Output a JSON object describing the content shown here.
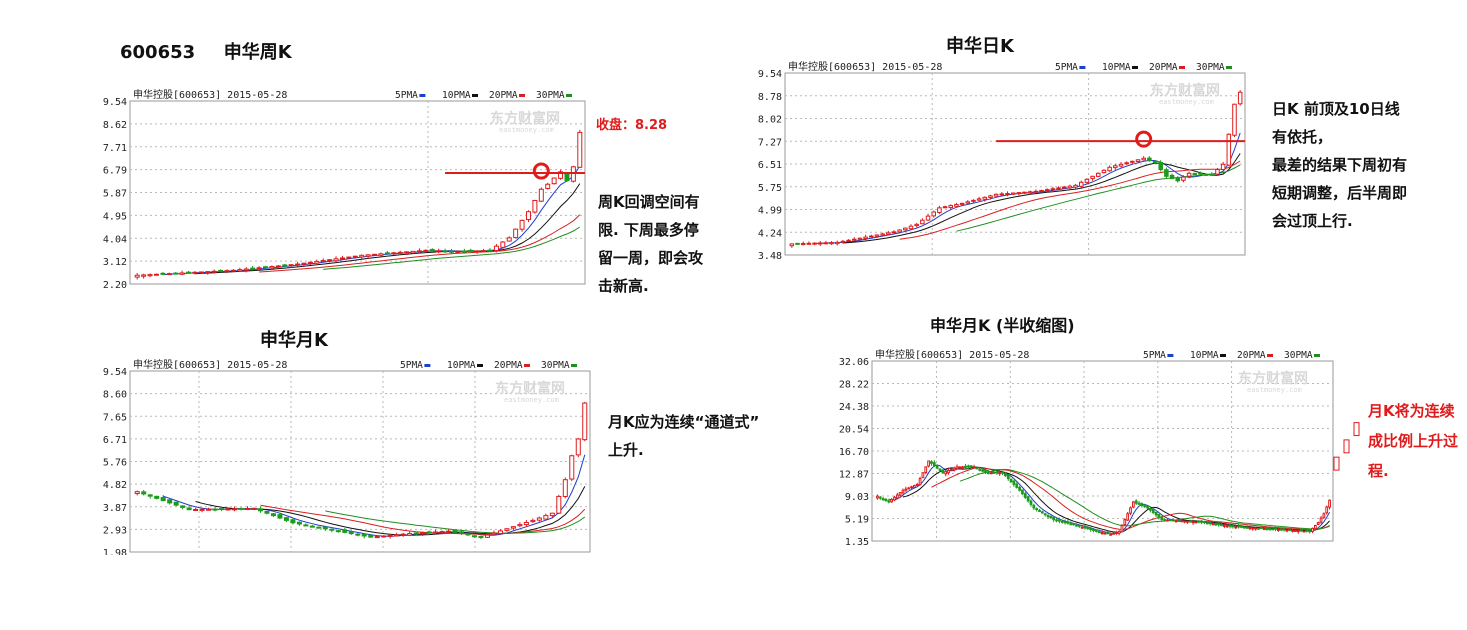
{
  "titles": {
    "weekly_head_code": "600653",
    "weekly_head_name": "申华周K",
    "daily_head": "申华日K",
    "monthly_head": "申华月K",
    "monthly_half_head": "申华月K (半收缩图)"
  },
  "notes": {
    "weekly_close": "收盘：8.28",
    "weekly_lines": [
      "周K回调空间有",
      "限. 下周最多停",
      "留一周，即会攻",
      "击新高."
    ],
    "daily_lines": [
      "日K 前顶及10日线",
      "有依托，",
      "最差的结果下周初有",
      "短期调整，后半周即",
      "会过顶上行."
    ],
    "monthly_lines": [
      "月K应为连续“通道式”",
      "上升."
    ],
    "monthly_half_lines": [
      "月K将为连续",
      "成比例上升过",
      "程."
    ]
  },
  "colors": {
    "up": "#e01b1b",
    "down": "#1a9c1a",
    "ma5": "#1f3fd0",
    "ma10": "#111111",
    "ma20": "#d82020",
    "ma30": "#1f8f1f",
    "grid": "#b8b8b8",
    "annotation": "#e01b1b"
  },
  "chart_data": [
    {
      "id": "weekly",
      "type": "candlestick",
      "header": "申华控股[600653] 2015-05-28",
      "legend": [
        "5PMA",
        "10PMA",
        "20PMA",
        "30PMA"
      ],
      "watermark": "东方财富网",
      "watermark_sub": "eastmoney.com",
      "y_ticks": [
        "9.54",
        "8.62",
        "7.71",
        "6.79",
        "5.87",
        "4.95",
        "4.04",
        "3.12",
        "2.20"
      ],
      "ylim": [
        2.2,
        9.54
      ],
      "n": 70,
      "anchors": [
        [
          0,
          2.55
        ],
        [
          15,
          2.75
        ],
        [
          25,
          3.0
        ],
        [
          35,
          3.35
        ],
        [
          45,
          3.55
        ],
        [
          50,
          3.5
        ],
        [
          55,
          3.55
        ],
        [
          58,
          4.05
        ],
        [
          61,
          5.1
        ],
        [
          63,
          6.0
        ],
        [
          64,
          6.2
        ],
        [
          66,
          6.7
        ],
        [
          67,
          6.35
        ],
        [
          68,
          6.9
        ],
        [
          69,
          8.28
        ]
      ],
      "resistance_line": 6.65,
      "circle_index": 63
    },
    {
      "id": "daily",
      "type": "candlestick",
      "header": "申华控股[600653] 2015-05-28",
      "legend": [
        "5PMA",
        "10PMA",
        "20PMA",
        "30PMA"
      ],
      "watermark": "东方财富网",
      "watermark_sub": "eastmoney.com",
      "y_ticks": [
        "9.54",
        "8.78",
        "8.02",
        "7.27",
        "6.51",
        "5.75",
        "4.99",
        "4.24",
        "3.48"
      ],
      "ylim": [
        3.48,
        9.54
      ],
      "n": 80,
      "anchors": [
        [
          0,
          3.85
        ],
        [
          8,
          3.9
        ],
        [
          18,
          4.25
        ],
        [
          22,
          4.5
        ],
        [
          26,
          5.05
        ],
        [
          30,
          5.2
        ],
        [
          36,
          5.5
        ],
        [
          43,
          5.6
        ],
        [
          50,
          5.8
        ],
        [
          56,
          6.4
        ],
        [
          62,
          6.7
        ],
        [
          64,
          6.55
        ],
        [
          66,
          6.1
        ],
        [
          68,
          5.95
        ],
        [
          70,
          6.2
        ],
        [
          74,
          6.15
        ],
        [
          76,
          6.5
        ],
        [
          78,
          8.5
        ],
        [
          79,
          8.9
        ]
      ],
      "resistance_line": 7.27,
      "circle_index": 62
    },
    {
      "id": "monthly",
      "type": "candlestick",
      "header": "申华控股[600653] 2015-05-28",
      "legend": [
        "5PMA",
        "10PMA",
        "20PMA",
        "30PMA"
      ],
      "watermark": "东方财富网",
      "watermark_sub": "eastmoney.com",
      "y_ticks": [
        "9.54",
        "8.60",
        "7.65",
        "6.71",
        "5.76",
        "4.82",
        "3.87",
        "2.93",
        "1.98"
      ],
      "ylim": [
        1.98,
        9.54
      ],
      "n": 70,
      "anchors": [
        [
          0,
          4.5
        ],
        [
          8,
          3.75
        ],
        [
          18,
          3.8
        ],
        [
          24,
          3.2
        ],
        [
          30,
          2.9
        ],
        [
          36,
          2.6
        ],
        [
          42,
          2.75
        ],
        [
          48,
          2.85
        ],
        [
          53,
          2.6
        ],
        [
          57,
          2.95
        ],
        [
          61,
          3.3
        ],
        [
          64,
          3.6
        ],
        [
          66,
          5.0
        ],
        [
          67,
          6.0
        ],
        [
          68,
          6.7
        ],
        [
          69,
          8.2
        ]
      ]
    },
    {
      "id": "monthly_half",
      "type": "candlestick",
      "header": "申华控股[600653] 2015-05-28",
      "legend": [
        "5PMA",
        "10PMA",
        "20PMA",
        "30PMA"
      ],
      "watermark": "东方财富网",
      "watermark_sub": "eastmoney.com",
      "y_ticks": [
        "32.06",
        "28.22",
        "24.38",
        "20.54",
        "16.70",
        "12.87",
        "9.03",
        "5.19",
        "1.35"
      ],
      "ylim": [
        1.35,
        32.06
      ],
      "n": 160,
      "anchors": [
        [
          0,
          9
        ],
        [
          4,
          8
        ],
        [
          9,
          10
        ],
        [
          14,
          11
        ],
        [
          18,
          15
        ],
        [
          23,
          13
        ],
        [
          28,
          14
        ],
        [
          34,
          14
        ],
        [
          38,
          13
        ],
        [
          44,
          13
        ],
        [
          50,
          10
        ],
        [
          55,
          7
        ],
        [
          62,
          5
        ],
        [
          70,
          4
        ],
        [
          77,
          3
        ],
        [
          82,
          2.5
        ],
        [
          85,
          3
        ],
        [
          90,
          8
        ],
        [
          95,
          7
        ],
        [
          100,
          5
        ],
        [
          107,
          4.8
        ],
        [
          115,
          4.5
        ],
        [
          125,
          3.8
        ],
        [
          135,
          3.5
        ],
        [
          145,
          3.2
        ],
        [
          152,
          3.0
        ],
        [
          155,
          4.5
        ],
        [
          157,
          6
        ],
        [
          159,
          8.3
        ]
      ]
    },
    {
      "id": "monthly_half_ext",
      "type": "candlestick",
      "values": [
        [
          11,
          14
        ],
        [
          15,
          18
        ],
        [
          19,
          22
        ]
      ],
      "ylim": [
        5,
        24
      ]
    }
  ]
}
